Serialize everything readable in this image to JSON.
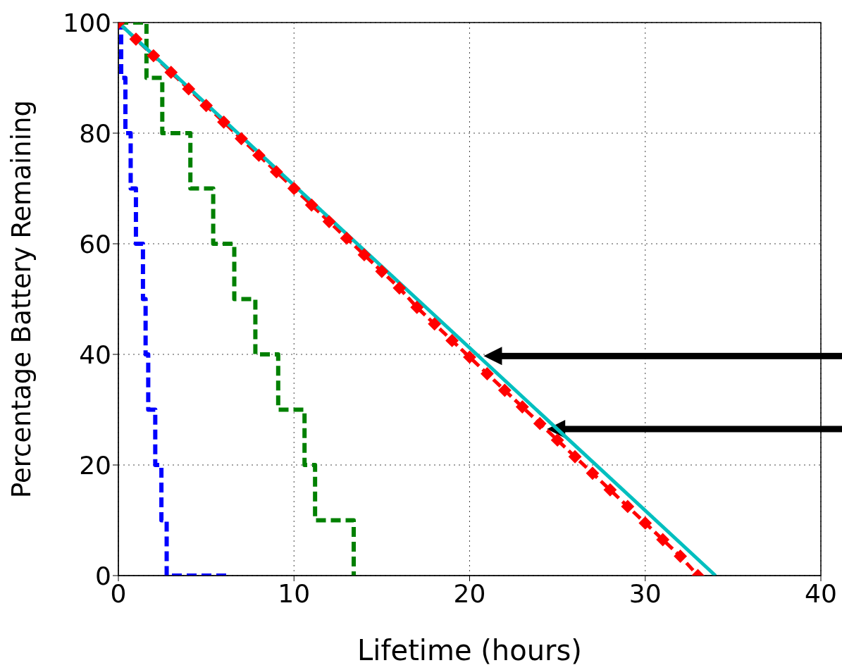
{
  "chart_data": {
    "type": "line",
    "xlabel": "Lifetime (hours)",
    "ylabel": "Percentage Battery Remaining",
    "xlim": [
      0,
      40
    ],
    "xticks": [
      0,
      10,
      20,
      30,
      40
    ],
    "ylim": [
      0,
      100
    ],
    "yticks": [
      0,
      20,
      40,
      60,
      80,
      100
    ],
    "grid": true,
    "series": [
      {
        "type": "step",
        "color": "#0000ff",
        "line_style": "dashed",
        "marker": "none",
        "x": [
          0,
          0.16,
          0.4,
          0.7,
          1.0,
          1.4,
          1.55,
          1.7,
          2.1,
          2.45,
          2.75,
          6.2
        ],
        "values": [
          100,
          90,
          80,
          70,
          60,
          50,
          40,
          30,
          20,
          10,
          0,
          0
        ]
      },
      {
        "type": "step",
        "color": "#008000",
        "line_style": "dashed",
        "marker": "none",
        "x": [
          0,
          1.6,
          2.5,
          4.1,
          5.4,
          6.6,
          7.8,
          9.1,
          10.6,
          11.2,
          13.4,
          13.4
        ],
        "values": [
          100,
          90,
          80,
          70,
          60,
          50,
          40,
          30,
          20,
          10,
          0,
          0
        ]
      },
      {
        "type": "line",
        "color": "#ff0000",
        "line_style": "dashed",
        "marker": "diamond",
        "x": [
          0,
          1,
          2,
          3,
          4,
          5,
          6,
          7,
          8,
          9,
          10,
          11,
          12,
          13,
          14,
          15,
          16,
          17,
          18,
          19,
          20,
          21,
          22,
          23,
          24,
          25,
          26,
          27,
          28,
          29,
          30,
          31,
          32,
          33
        ],
        "values": [
          100,
          97,
          94,
          91,
          88,
          85,
          82,
          79,
          76,
          73,
          70,
          67,
          64,
          61,
          58,
          55,
          52,
          48.5,
          45.5,
          42.5,
          39.5,
          36.5,
          33.5,
          30.5,
          27.5,
          24.5,
          21.5,
          18.5,
          15.5,
          12.5,
          9.5,
          6.5,
          3.5,
          0
        ]
      },
      {
        "type": "line",
        "color": "#00bfbf",
        "line_style": "solid",
        "marker": "none",
        "x": [
          0,
          34
        ],
        "values": [
          100,
          0
        ]
      }
    ]
  }
}
